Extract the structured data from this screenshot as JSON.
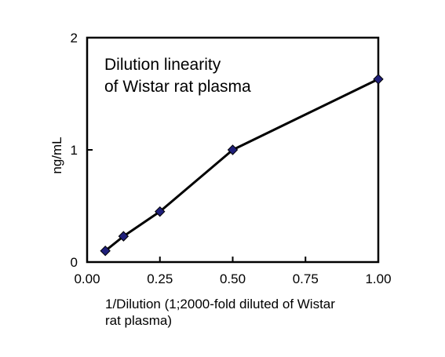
{
  "chart_data": {
    "type": "line",
    "title": [
      "Dilution linearity",
      "of Wistar rat plasma"
    ],
    "xlabel": [
      "1/Dilution (1;2000-fold diluted of Wistar",
      "rat plasma)"
    ],
    "ylabel": "ng/mL",
    "xlim": [
      0,
      1
    ],
    "ylim": [
      0,
      2
    ],
    "x_ticks": [
      "0.00",
      "0.25",
      "0.50",
      "0.75",
      "1.00"
    ],
    "y_ticks": [
      "0",
      "1",
      "2"
    ],
    "series": [
      {
        "x": [
          0.0625,
          0.125,
          0.25,
          0.5,
          1.0
        ],
        "y": [
          0.1,
          0.23,
          0.45,
          1.0,
          1.63
        ],
        "color": "#1f1f7a",
        "marker": "diamond"
      }
    ],
    "grid": false,
    "legend": "none"
  }
}
